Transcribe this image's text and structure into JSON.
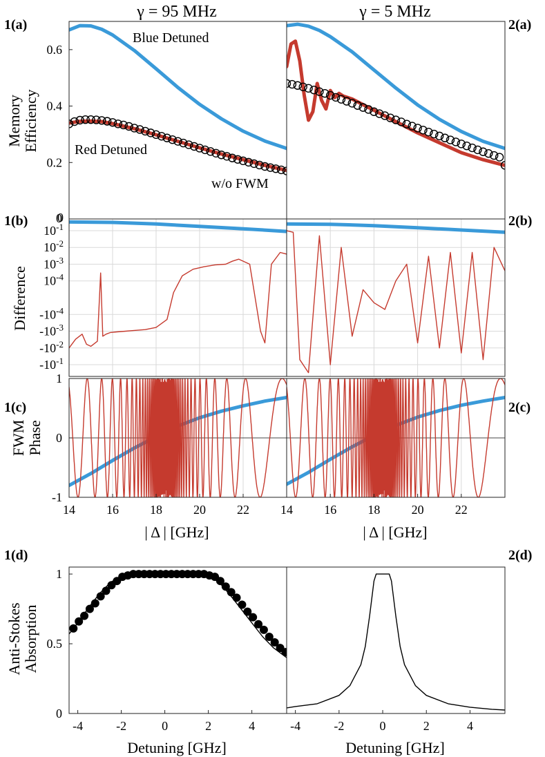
{
  "header": {
    "left_title": "γ = 95 MHz",
    "right_title": "γ = 5 MHz"
  },
  "panel_labels": [
    "1(a)",
    "2(a)",
    "1(b)",
    "2(b)",
    "1(c)",
    "2(c)",
    "1(d)",
    "2(d)"
  ],
  "row_labels": {
    "a": [
      "Memory",
      "Efficiency"
    ],
    "b": [
      "Difference"
    ],
    "c": [
      "FWM",
      "Phase"
    ],
    "d": [
      "Anti-Stokes",
      "Absorption"
    ]
  },
  "x_labels": {
    "delta": "| Δ | [GHz]",
    "detuning": "Detuning [GHz]"
  },
  "colors": {
    "blue": "#3a9ad9",
    "red": "#c53a2e",
    "black": "#000000",
    "grid": "#d9d9d9"
  },
  "chart_data": [
    {
      "id": "1a",
      "type": "line",
      "title": "γ = 95 MHz",
      "ylabel": "Memory Efficiency",
      "xlim": [
        14,
        24
      ],
      "ylim": [
        0,
        0.7
      ],
      "yticks": [
        0.2,
        0.4,
        0.6
      ],
      "ytick_labels": [
        "0.2",
        "0.4",
        "0.6"
      ],
      "annotations": [
        "Blue Detuned",
        "Red Detuned",
        "w/o FWM"
      ],
      "series": [
        {
          "name": "Blue Detuned",
          "color": "blue",
          "x": [
            14,
            14.5,
            15,
            15.5,
            16,
            17,
            18,
            19,
            20,
            21,
            22,
            23,
            24
          ],
          "y": [
            0.67,
            0.685,
            0.684,
            0.672,
            0.652,
            0.597,
            0.532,
            0.466,
            0.406,
            0.355,
            0.311,
            0.276,
            0.25
          ]
        },
        {
          "name": "Red Detuned",
          "color": "red",
          "x": [
            14,
            14.5,
            15,
            15.5,
            16,
            17,
            18,
            19,
            20,
            21,
            22,
            23,
            24
          ],
          "y": [
            0.34,
            0.346,
            0.347,
            0.345,
            0.338,
            0.32,
            0.298,
            0.275,
            0.252,
            0.23,
            0.21,
            0.19,
            0.172
          ]
        },
        {
          "name": "w/o FWM",
          "color": "black",
          "marker": "circle",
          "x": [
            14,
            14.25,
            14.5,
            14.75,
            15,
            15.25,
            15.5,
            15.75,
            16,
            16.25,
            16.5,
            16.75,
            17,
            17.25,
            17.5,
            17.75,
            18,
            18.25,
            18.5,
            18.75,
            19,
            19.25,
            19.5,
            19.75,
            20,
            20.25,
            20.5,
            20.75,
            21,
            21.25,
            21.5,
            21.75,
            22,
            22.25,
            22.5,
            22.75,
            23,
            23.25,
            23.5,
            23.75,
            24
          ],
          "y": [
            0.337,
            0.345,
            0.35,
            0.352,
            0.352,
            0.351,
            0.349,
            0.346,
            0.342,
            0.337,
            0.333,
            0.328,
            0.322,
            0.317,
            0.311,
            0.305,
            0.299,
            0.293,
            0.287,
            0.281,
            0.275,
            0.269,
            0.263,
            0.257,
            0.251,
            0.245,
            0.239,
            0.233,
            0.227,
            0.222,
            0.216,
            0.211,
            0.206,
            0.201,
            0.196,
            0.191,
            0.186,
            0.182,
            0.178,
            0.174,
            0.17
          ]
        }
      ]
    },
    {
      "id": "2a",
      "type": "line",
      "title": "γ = 5 MHz",
      "xlim": [
        14,
        24
      ],
      "ylim": [
        0,
        0.7
      ],
      "series": [
        {
          "name": "Blue Detuned",
          "color": "blue",
          "x": [
            14,
            14.5,
            15,
            15.5,
            16,
            17,
            18,
            19,
            20,
            21,
            22,
            23,
            24
          ],
          "y": [
            0.685,
            0.69,
            0.683,
            0.668,
            0.646,
            0.592,
            0.528,
            0.464,
            0.404,
            0.353,
            0.31,
            0.275,
            0.25
          ]
        },
        {
          "name": "Red Detuned",
          "color": "red",
          "x": [
            14,
            14.2,
            14.4,
            14.6,
            14.8,
            15,
            15.2,
            15.4,
            15.6,
            15.8,
            16,
            16.2,
            16.4,
            16.6,
            16.8,
            17,
            17.5,
            18,
            19,
            20,
            21,
            22,
            23,
            23.5,
            24
          ],
          "y": [
            0.54,
            0.62,
            0.63,
            0.56,
            0.44,
            0.35,
            0.38,
            0.48,
            0.42,
            0.39,
            0.455,
            0.43,
            0.445,
            0.435,
            0.43,
            0.425,
            0.405,
            0.385,
            0.345,
            0.305,
            0.27,
            0.235,
            0.21,
            0.2,
            0.19
          ]
        },
        {
          "name": "w/o FWM",
          "color": "black",
          "marker": "circle",
          "x": [
            14,
            14.25,
            14.5,
            14.75,
            15,
            15.25,
            15.5,
            15.75,
            16,
            16.25,
            16.5,
            16.75,
            17,
            17.25,
            17.5,
            17.75,
            18,
            18.25,
            18.5,
            18.75,
            19,
            19.25,
            19.5,
            19.75,
            20,
            20.25,
            20.5,
            20.75,
            21,
            21.25,
            21.5,
            21.75,
            22,
            22.25,
            22.5,
            22.75,
            23,
            23.25,
            23.5,
            23.75,
            24
          ],
          "y": [
            0.48,
            0.477,
            0.473,
            0.468,
            0.463,
            0.457,
            0.451,
            0.445,
            0.438,
            0.431,
            0.424,
            0.417,
            0.41,
            0.402,
            0.395,
            0.388,
            0.38,
            0.373,
            0.366,
            0.358,
            0.351,
            0.344,
            0.336,
            0.329,
            0.322,
            0.315,
            0.308,
            0.301,
            0.294,
            0.287,
            0.28,
            0.273,
            0.266,
            0.259,
            0.252,
            0.245,
            0.238,
            0.232,
            0.225,
            0.219,
            0.19
          ]
        }
      ]
    },
    {
      "id": "1b",
      "type": "line",
      "ylabel": "Difference",
      "xlim": [
        14,
        24
      ],
      "yscale": "symlog",
      "ylim": [
        -0.5,
        0.5
      ],
      "ytick_labels": [
        "0",
        "10^-1",
        "10^-2",
        "10^-3",
        "10^-4",
        "-10^-4",
        "-10^-3",
        "-10^-2",
        "-10^-1"
      ],
      "series": [
        {
          "name": "Blue Detuned",
          "color": "blue",
          "x": [
            14,
            16,
            18,
            20,
            22,
            24
          ],
          "y": [
            0.33,
            0.31,
            0.25,
            0.18,
            0.13,
            0.09
          ]
        },
        {
          "name": "Red Detuned",
          "color": "red",
          "x": [
            14,
            14.3,
            14.6,
            14.8,
            15,
            15.3,
            15.45,
            15.55,
            15.7,
            15.9,
            16.2,
            16.6,
            17,
            17.5,
            18,
            18.5,
            18.8,
            19.2,
            19.7,
            20.2,
            20.7,
            21.2,
            21.5,
            21.8,
            22.3,
            22.8,
            23,
            23.3,
            23.7,
            24
          ],
          "y": [
            -0.01,
            -0.003,
            -0.0015,
            -0.006,
            -0.008,
            -0.004,
            0.0003,
            -0.002,
            -0.0015,
            -0.0012,
            -0.0011,
            -0.001,
            -0.0009,
            -0.0008,
            -0.0006,
            -0.0002,
            2e-05,
            0.0002,
            0.0005,
            0.0007,
            0.0009,
            0.001,
            0.0015,
            0.002,
            0.001,
            -0.001,
            -0.005,
            0.001,
            0.005,
            0.004
          ]
        }
      ]
    },
    {
      "id": "2b",
      "type": "line",
      "xlim": [
        14,
        24
      ],
      "yscale": "symlog",
      "ylim": [
        -0.5,
        0.5
      ],
      "series": [
        {
          "name": "Blue Detuned",
          "color": "blue",
          "x": [
            14,
            16,
            18,
            20,
            22,
            24
          ],
          "y": [
            0.25,
            0.24,
            0.2,
            0.15,
            0.11,
            0.08
          ]
        },
        {
          "name": "Red Detuned",
          "color": "red",
          "x": [
            14,
            14.3,
            14.6,
            15,
            15.5,
            16,
            16.5,
            17,
            17.5,
            18,
            18.5,
            19,
            19.5,
            20,
            20.5,
            21,
            21.5,
            22,
            22.5,
            23,
            23.5,
            24
          ],
          "y": [
            0.1,
            0.08,
            -0.05,
            -0.3,
            0.05,
            -0.1,
            0.01,
            -0.002,
            3e-05,
            -2e-05,
            -5e-05,
            0.0001,
            0.001,
            -0.005,
            0.003,
            -0.01,
            0.005,
            -0.02,
            0.005,
            -0.05,
            0.01,
            0.0004
          ]
        }
      ]
    },
    {
      "id": "1c",
      "type": "line",
      "ylabel": "FWM Phase",
      "xlim": [
        14,
        24
      ],
      "ylim": [
        -1,
        1
      ],
      "yticks": [
        -1,
        0,
        1
      ],
      "xticks": [
        14,
        16,
        18,
        20,
        22
      ],
      "series": [
        {
          "name": "Blue Detuned",
          "color": "blue",
          "x": [
            14,
            15,
            16,
            17,
            18,
            19,
            20,
            21,
            22,
            23,
            24
          ],
          "y": [
            -0.8,
            -0.6,
            -0.38,
            -0.17,
            0.02,
            0.2,
            0.34,
            0.45,
            0.54,
            0.62,
            0.68
          ]
        },
        {
          "name": "Red Detuned",
          "color": "red",
          "x": [
            14,
            14.3,
            14.7,
            15,
            15.2,
            15.4,
            15.6,
            16,
            16.5,
            17,
            18,
            19,
            19.5,
            20,
            20.3,
            20.6,
            21,
            21.3,
            21.7,
            22.1,
            22.6,
            23,
            23.5,
            24
          ],
          "y": [
            0.4,
            1,
            1,
            -1,
            1,
            -1,
            1,
            -1,
            1,
            -1,
            1,
            -1,
            1,
            -1,
            1,
            -1,
            1,
            -1,
            1,
            -1,
            1,
            -1,
            1,
            -0.1
          ]
        }
      ]
    },
    {
      "id": "2c",
      "type": "line",
      "xlim": [
        14,
        24
      ],
      "ylim": [
        -1,
        1
      ],
      "xticks": [
        14,
        16,
        18,
        20,
        22
      ],
      "series": [
        {
          "name": "Blue Detuned",
          "color": "blue",
          "x": [
            14,
            15,
            16,
            17,
            18,
            19,
            20,
            21,
            22,
            23,
            24
          ],
          "y": [
            -0.78,
            -0.58,
            -0.36,
            -0.15,
            0.04,
            0.21,
            0.35,
            0.46,
            0.55,
            0.62,
            0.68
          ]
        },
        {
          "name": "Red Detuned",
          "color": "red",
          "x": [
            14,
            14.3,
            14.7,
            15,
            15.3,
            15.6,
            16,
            16.5,
            17,
            18,
            19,
            19.5,
            20,
            20.5,
            21,
            21.5,
            22,
            22.5,
            23,
            23.5,
            24
          ],
          "y": [
            0.45,
            1,
            0.2,
            -1,
            1,
            -1,
            1,
            -1,
            1,
            -1,
            1,
            -1,
            1,
            -1,
            1,
            -1,
            1,
            -1,
            1,
            -1,
            0.4
          ]
        }
      ]
    },
    {
      "id": "1d",
      "type": "line",
      "ylabel": "Anti-Stokes Absorption",
      "xlabel": "Detuning [GHz]",
      "xlim": [
        -4.4,
        5.6
      ],
      "ylim": [
        0,
        1.05
      ],
      "yticks": [
        0,
        0.5,
        1
      ],
      "xticks": [
        -4,
        -2,
        0,
        2,
        4
      ],
      "series": [
        {
          "name": "line",
          "color": "black",
          "x": [
            -4.4,
            -4,
            -3.5,
            -3,
            -2.5,
            -2,
            -1.5,
            -1,
            0,
            1,
            1.5,
            2,
            2.5,
            3,
            3.5,
            4,
            4.5,
            5,
            5.6
          ],
          "y": [
            0.57,
            0.65,
            0.76,
            0.86,
            0.94,
            0.985,
            0.998,
            1,
            1,
            1,
            0.998,
            0.985,
            0.94,
            0.85,
            0.75,
            0.65,
            0.55,
            0.47,
            0.4
          ]
        },
        {
          "name": "markers",
          "color": "black",
          "marker": "filled-circle",
          "x": [
            -4.2,
            -3.95,
            -3.7,
            -3.45,
            -3.2,
            -2.95,
            -2.7,
            -2.45,
            -2.2,
            -1.95,
            -1.7,
            -1.45,
            -1.2,
            -0.95,
            -0.7,
            -0.45,
            -0.2,
            0.05,
            0.3,
            0.55,
            0.8,
            1.05,
            1.3,
            1.55,
            1.8,
            2.05,
            2.3,
            2.55,
            2.8,
            3.05,
            3.3,
            3.55,
            3.8,
            4.05,
            4.3,
            4.55,
            4.8,
            5.05,
            5.3,
            5.55
          ],
          "y": [
            0.61,
            0.66,
            0.7,
            0.75,
            0.79,
            0.84,
            0.88,
            0.92,
            0.95,
            0.98,
            0.99,
            1,
            1,
            1,
            1,
            1,
            1,
            1,
            1,
            1,
            1,
            1,
            1,
            1,
            1,
            0.99,
            0.98,
            0.95,
            0.91,
            0.87,
            0.83,
            0.78,
            0.73,
            0.69,
            0.64,
            0.6,
            0.55,
            0.51,
            0.47,
            0.44
          ]
        }
      ]
    },
    {
      "id": "2d",
      "type": "line",
      "xlabel": "Detuning [GHz]",
      "xlim": [
        -4.4,
        5.6
      ],
      "ylim": [
        0,
        1.05
      ],
      "xticks": [
        -4,
        -2,
        0,
        2,
        4
      ],
      "series": [
        {
          "name": "line",
          "color": "black",
          "x": [
            -4.4,
            -4,
            -3,
            -2,
            -1.5,
            -1,
            -0.8,
            -0.6,
            -0.4,
            -0.3,
            0,
            0.3,
            0.4,
            0.6,
            0.8,
            1,
            1.5,
            2,
            3,
            4,
            5,
            5.6
          ],
          "y": [
            0.04,
            0.05,
            0.07,
            0.13,
            0.2,
            0.35,
            0.48,
            0.7,
            0.95,
            1,
            1,
            1,
            0.95,
            0.7,
            0.48,
            0.35,
            0.2,
            0.13,
            0.07,
            0.045,
            0.03,
            0.025
          ]
        }
      ]
    }
  ]
}
